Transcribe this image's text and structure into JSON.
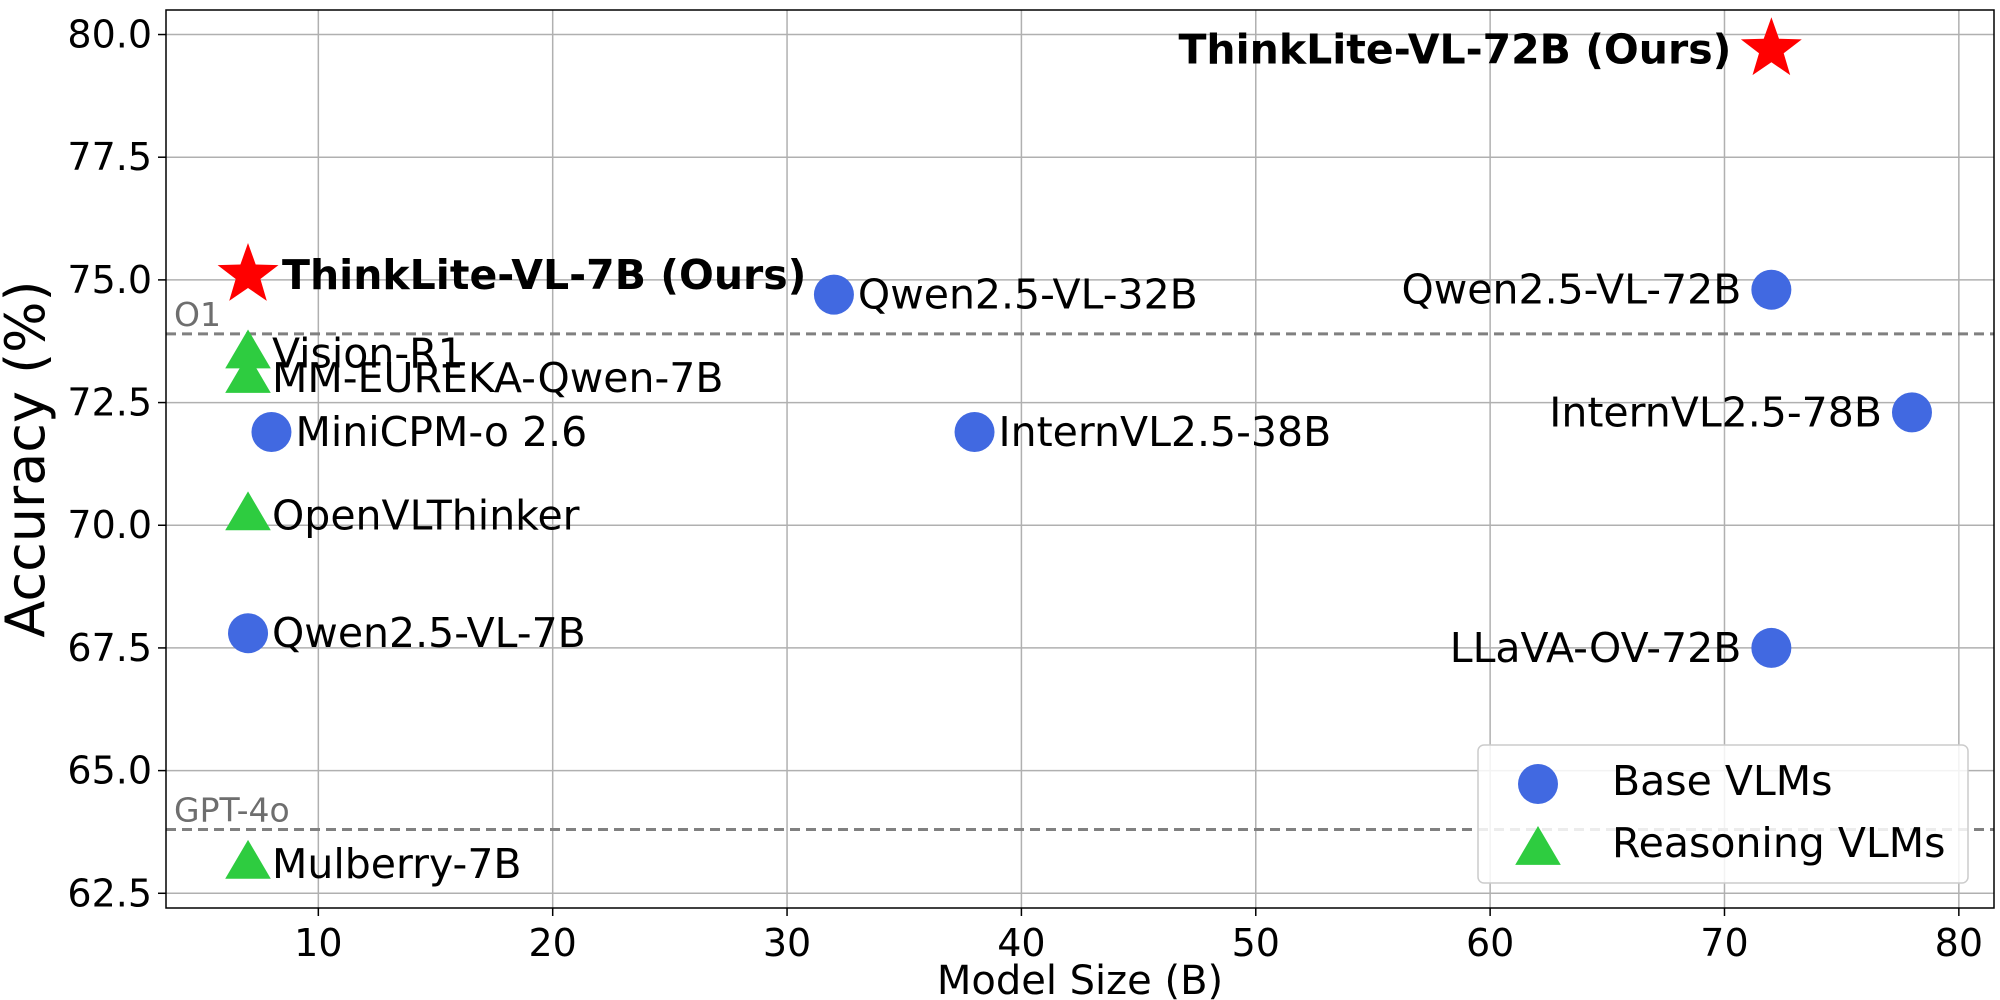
{
  "chart_data": {
    "type": "scatter",
    "title": "",
    "xlabel": "Model Size (B)",
    "ylabel": "Accuracy (%)",
    "xlim": [
      3.5,
      81.5
    ],
    "ylim": [
      62.2,
      80.5
    ],
    "xticks": [
      10,
      20,
      30,
      40,
      50,
      60,
      70,
      80
    ],
    "yticks": [
      62.5,
      65.0,
      67.5,
      70.0,
      72.5,
      75.0,
      77.5,
      80.0
    ],
    "tick_format": {
      "x_decimals": 0,
      "y_decimals": 1
    },
    "grid": true,
    "legend_position": "bottom-right",
    "colors": {
      "base": "#4169e1",
      "reasoning": "#2ecc40",
      "ours": "#ff0000",
      "reference": "#808080"
    },
    "reference_lines": [
      {
        "label": "O1",
        "y": 73.9
      },
      {
        "label": "GPT-4o",
        "y": 63.8
      }
    ],
    "series": [
      {
        "name": "Base VLMs",
        "marker": "circle",
        "points": [
          {
            "label": "Qwen2.5-VL-7B",
            "x": 7,
            "y": 67.8
          },
          {
            "label": "MiniCPM-o 2.6",
            "x": 8,
            "y": 71.9
          },
          {
            "label": "Qwen2.5-VL-32B",
            "x": 32,
            "y": 74.7
          },
          {
            "label": "InternVL2.5-38B",
            "x": 38,
            "y": 71.9
          },
          {
            "label": "Qwen2.5-VL-72B",
            "x": 72,
            "y": 74.8
          },
          {
            "label": "InternVL2.5-78B",
            "x": 78,
            "y": 72.3
          },
          {
            "label": "LLaVA-OV-72B",
            "x": 72,
            "y": 67.5
          }
        ]
      },
      {
        "name": "Reasoning VLMs",
        "marker": "triangle",
        "points": [
          {
            "label": "Vision-R1",
            "x": 7,
            "y": 73.5
          },
          {
            "label": "MM-EUREKA-Qwen-7B",
            "x": 7,
            "y": 73.0
          },
          {
            "label": "OpenVLThinker",
            "x": 7,
            "y": 70.2
          },
          {
            "label": "Mulberry-7B",
            "x": 7,
            "y": 63.1
          }
        ]
      },
      {
        "marker": "star",
        "points": [
          {
            "label": "ThinkLite-VL-7B (Ours)",
            "x": 7,
            "y": 75.1
          },
          {
            "label": "ThinkLite-VL-72B (Ours)",
            "x": 72,
            "y": 79.7
          }
        ]
      }
    ]
  }
}
